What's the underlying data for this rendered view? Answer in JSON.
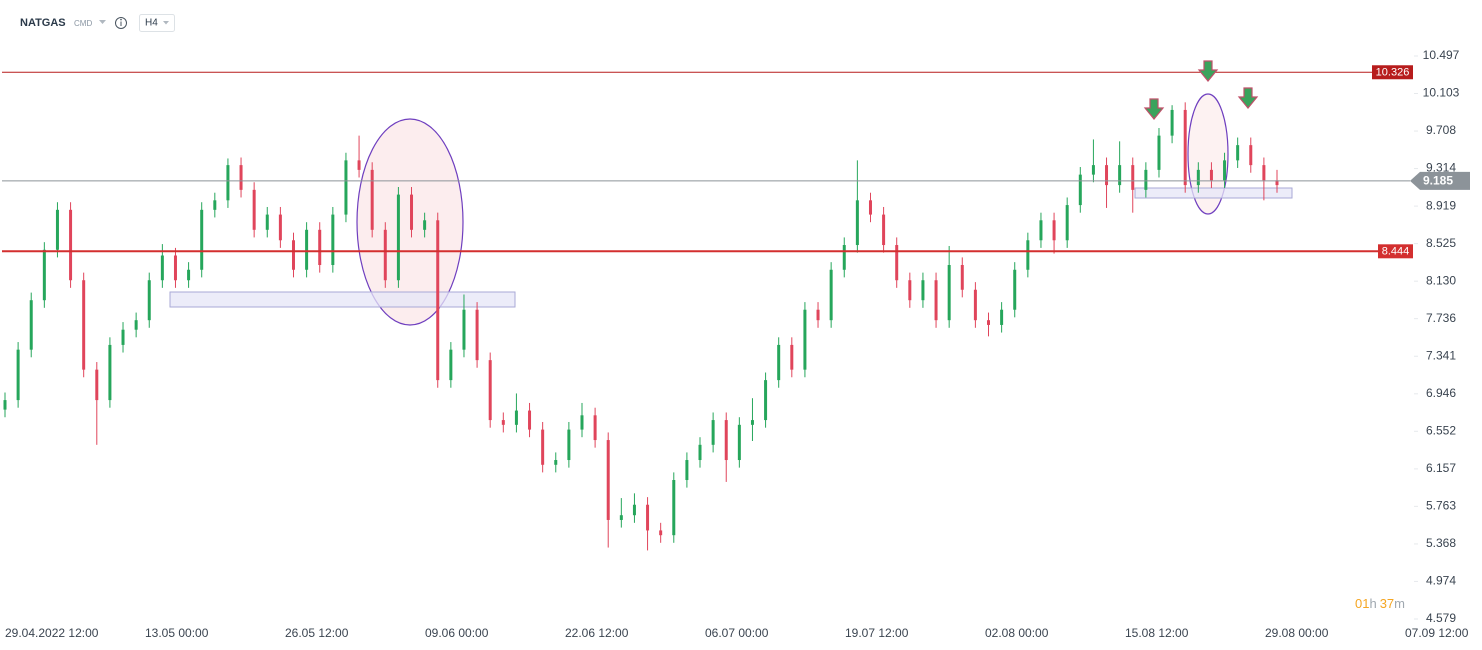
{
  "header": {
    "symbol": "NATGAS",
    "kind": "CMD",
    "interval": "H4"
  },
  "countdown": [
    "01",
    "h",
    "37",
    "m"
  ],
  "chart_data": {
    "type": "candlestick",
    "ylim": [
      4.579,
      10.497
    ],
    "yticks": [
      10.497,
      10.103,
      9.708,
      9.314,
      8.919,
      8.525,
      {
        "value": 8.13,
        "label": "8.130"
      },
      7.736,
      7.341,
      6.946,
      6.552,
      6.157,
      5.763,
      5.368,
      4.974,
      4.579
    ],
    "xtick_labels": [
      "29.04.2022 12:00",
      "13.05 00:00",
      "26.05 12:00",
      "09.06 00:00",
      "22.06 12:00",
      "06.07 00:00",
      "19.07 12:00",
      "02.08 00:00",
      "15.08 12:00",
      "29.08 00:00",
      "07.09 12:00"
    ],
    "colors": {
      "up": "#26a65b",
      "down": "#e0455b"
    },
    "levels": [
      {
        "value": 10.326,
        "color": "#b71c1c"
      },
      {
        "value": 8.444,
        "color": "#d32f2f"
      }
    ],
    "last_price": {
      "value": 9.185,
      "color": "#8c9399"
    },
    "ohlc": [
      [
        6.78,
        6.96,
        6.7,
        6.88
      ],
      [
        6.88,
        7.49,
        6.8,
        7.41
      ],
      [
        7.41,
        8.01,
        7.33,
        7.93
      ],
      [
        7.93,
        8.54,
        7.85,
        8.46
      ],
      [
        8.46,
        8.96,
        8.38,
        8.88
      ],
      [
        8.88,
        8.96,
        8.06,
        8.14
      ],
      [
        8.14,
        8.22,
        7.12,
        7.2
      ],
      [
        7.2,
        7.28,
        6.41,
        6.88
      ],
      [
        6.88,
        7.54,
        6.8,
        7.46
      ],
      [
        7.46,
        7.7,
        7.38,
        7.62
      ],
      [
        7.62,
        7.8,
        7.54,
        7.72
      ],
      [
        7.72,
        8.22,
        7.64,
        8.14
      ],
      [
        8.14,
        8.52,
        8.06,
        8.4
      ],
      [
        8.4,
        8.48,
        8.06,
        8.14
      ],
      [
        8.14,
        8.33,
        8.06,
        8.25
      ],
      [
        8.25,
        8.96,
        8.17,
        8.88
      ],
      [
        8.88,
        9.06,
        8.8,
        8.98
      ],
      [
        8.98,
        9.42,
        8.9,
        9.35
      ],
      [
        9.35,
        9.43,
        9.01,
        9.09
      ],
      [
        9.09,
        9.17,
        8.59,
        8.67
      ],
      [
        8.67,
        8.91,
        8.59,
        8.83
      ],
      [
        8.83,
        8.91,
        8.48,
        8.56
      ],
      [
        8.56,
        8.64,
        8.17,
        8.25
      ],
      [
        8.25,
        8.75,
        8.17,
        8.67
      ],
      [
        8.67,
        8.75,
        8.22,
        8.3
      ],
      [
        8.3,
        8.91,
        8.22,
        8.83
      ],
      [
        8.83,
        9.48,
        8.75,
        9.4
      ],
      [
        9.4,
        9.66,
        9.22,
        9.3
      ],
      [
        9.3,
        9.38,
        8.59,
        8.67
      ],
      [
        8.67,
        8.75,
        8.06,
        8.14
      ],
      [
        8.14,
        9.12,
        8.06,
        9.04
      ],
      [
        9.04,
        9.12,
        8.59,
        8.67
      ],
      [
        8.67,
        8.85,
        8.59,
        8.77
      ],
      [
        8.77,
        8.85,
        7.01,
        7.09
      ],
      [
        7.09,
        7.49,
        7.01,
        7.41
      ],
      [
        7.41,
        7.99,
        7.33,
        7.83
      ],
      [
        7.83,
        7.91,
        7.22,
        7.3
      ],
      [
        7.3,
        7.38,
        6.59,
        6.67
      ],
      [
        6.67,
        6.75,
        6.54,
        6.62
      ],
      [
        6.62,
        6.95,
        6.54,
        6.77
      ],
      [
        6.77,
        6.85,
        6.49,
        6.57
      ],
      [
        6.57,
        6.65,
        6.12,
        6.2
      ],
      [
        6.2,
        6.33,
        6.12,
        6.25
      ],
      [
        6.25,
        6.65,
        6.17,
        6.57
      ],
      [
        6.57,
        6.85,
        6.49,
        6.72
      ],
      [
        6.72,
        6.8,
        6.38,
        6.46
      ],
      [
        6.46,
        6.54,
        5.33,
        5.62
      ],
      [
        5.62,
        5.85,
        5.54,
        5.67
      ],
      [
        5.67,
        5.9,
        5.59,
        5.78
      ],
      [
        5.78,
        5.86,
        5.3,
        5.51
      ],
      [
        5.51,
        5.59,
        5.38,
        5.46
      ],
      [
        5.46,
        6.12,
        5.38,
        6.04
      ],
      [
        6.04,
        6.33,
        5.96,
        6.25
      ],
      [
        6.25,
        6.49,
        6.17,
        6.41
      ],
      [
        6.41,
        6.75,
        6.33,
        6.67
      ],
      [
        6.67,
        6.75,
        6.02,
        6.25
      ],
      [
        6.25,
        6.7,
        6.17,
        6.62
      ],
      [
        6.62,
        6.9,
        6.45,
        6.67
      ],
      [
        6.67,
        7.17,
        6.59,
        7.09
      ],
      [
        7.09,
        7.54,
        7.01,
        7.46
      ],
      [
        7.46,
        7.54,
        7.12,
        7.2
      ],
      [
        7.2,
        7.91,
        7.12,
        7.83
      ],
      [
        7.83,
        7.91,
        7.64,
        7.72
      ],
      [
        7.72,
        8.33,
        7.64,
        8.25
      ],
      [
        8.25,
        8.59,
        8.17,
        8.51
      ],
      [
        8.51,
        9.4,
        8.43,
        8.98
      ],
      [
        8.98,
        9.06,
        8.75,
        8.83
      ],
      [
        8.83,
        8.91,
        8.43,
        8.51
      ],
      [
        8.51,
        8.59,
        8.06,
        8.14
      ],
      [
        8.14,
        8.22,
        7.85,
        7.93
      ],
      [
        7.93,
        8.22,
        7.85,
        8.14
      ],
      [
        8.14,
        8.22,
        7.64,
        7.72
      ],
      [
        7.72,
        8.5,
        7.64,
        8.3
      ],
      [
        8.3,
        8.38,
        7.96,
        8.04
      ],
      [
        8.04,
        8.12,
        7.64,
        7.72
      ],
      [
        7.72,
        7.8,
        7.55,
        7.67
      ],
      [
        7.67,
        7.91,
        7.59,
        7.83
      ],
      [
        7.83,
        8.33,
        7.75,
        8.25
      ],
      [
        8.25,
        8.64,
        8.17,
        8.56
      ],
      [
        8.56,
        8.85,
        8.48,
        8.77
      ],
      [
        8.77,
        8.85,
        8.42,
        8.56
      ],
      [
        8.56,
        9.01,
        8.48,
        8.93
      ],
      [
        8.93,
        9.33,
        8.85,
        9.25
      ],
      [
        9.25,
        9.62,
        9.17,
        9.35
      ],
      [
        9.35,
        9.43,
        8.9,
        9.14
      ],
      [
        9.14,
        9.6,
        9.06,
        9.35
      ],
      [
        9.35,
        9.43,
        8.85,
        9.09
      ],
      [
        9.09,
        9.38,
        9.01,
        9.3
      ],
      [
        9.3,
        9.74,
        9.22,
        9.66
      ],
      [
        9.66,
        9.98,
        9.58,
        9.93
      ],
      [
        9.93,
        10.01,
        9.06,
        9.14
      ],
      [
        9.14,
        9.38,
        9.06,
        9.3
      ],
      [
        9.3,
        9.38,
        9.11,
        9.19
      ],
      [
        9.19,
        9.48,
        9.11,
        9.4
      ],
      [
        9.4,
        9.64,
        9.32,
        9.56
      ],
      [
        9.56,
        9.64,
        9.27,
        9.35
      ],
      [
        9.35,
        9.43,
        8.98,
        9.19
      ],
      [
        9.19,
        9.3,
        9.06,
        9.14
      ]
    ]
  }
}
